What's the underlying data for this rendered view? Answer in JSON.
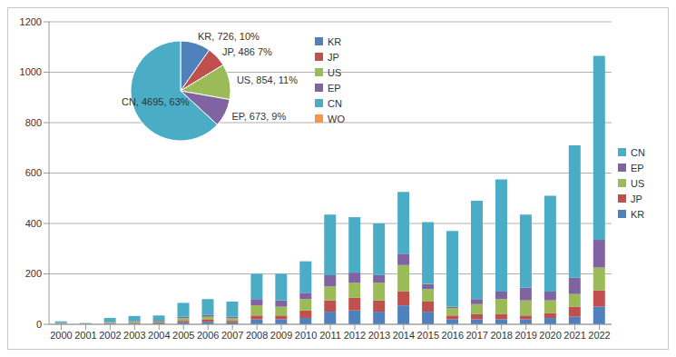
{
  "chart_data": [
    {
      "type": "bar",
      "stacked": true,
      "grid": true,
      "legend": "right",
      "categories": [
        "2000",
        "2001",
        "2002",
        "2003",
        "2004",
        "2005",
        "2006",
        "2007",
        "2008",
        "2009",
        "2010",
        "2011",
        "2012",
        "2013",
        "2014",
        "2015",
        "2016",
        "2017",
        "2018",
        "2019",
        "2020",
        "2021",
        "2022"
      ],
      "ylim": [
        0,
        1200
      ],
      "yticks": [
        0,
        200,
        400,
        600,
        800,
        1000,
        1200
      ],
      "series": [
        {
          "name": "KR",
          "color": "#4f81bd",
          "values": [
            2,
            1,
            3,
            3,
            4,
            8,
            10,
            8,
            20,
            20,
            25,
            50,
            55,
            50,
            75,
            50,
            20,
            20,
            20,
            20,
            25,
            30,
            70
          ]
        },
        {
          "name": "JP",
          "color": "#c0504d",
          "values": [
            1,
            0,
            2,
            3,
            3,
            6,
            8,
            6,
            15,
            15,
            30,
            45,
            50,
            45,
            55,
            40,
            15,
            20,
            20,
            15,
            20,
            40,
            65
          ]
        },
        {
          "name": "US",
          "color": "#9bbb59",
          "values": [
            2,
            1,
            3,
            4,
            4,
            10,
            12,
            10,
            40,
            35,
            45,
            55,
            60,
            70,
            105,
            50,
            30,
            40,
            60,
            60,
            50,
            50,
            90
          ]
        },
        {
          "name": "EP",
          "color": "#8064a2",
          "values": [
            1,
            1,
            2,
            3,
            3,
            6,
            8,
            6,
            25,
            25,
            25,
            45,
            40,
            30,
            45,
            20,
            5,
            20,
            30,
            50,
            35,
            65,
            110
          ]
        },
        {
          "name": "CN",
          "color": "#4bacc6",
          "values": [
            6,
            2,
            15,
            20,
            21,
            55,
            62,
            60,
            100,
            105,
            125,
            240,
            220,
            205,
            245,
            245,
            300,
            390,
            445,
            290,
            380,
            525,
            730
          ]
        }
      ]
    },
    {
      "type": "pie",
      "legend": "right",
      "categories": [
        "KR",
        "JP",
        "US",
        "EP",
        "CN",
        "WO"
      ],
      "values": [
        726,
        486,
        854,
        673,
        4695,
        0
      ],
      "colors": [
        "#4f81bd",
        "#c0504d",
        "#9bbb59",
        "#8064a2",
        "#4bacc6",
        "#f79646"
      ],
      "value_labels": [
        "KR, 726, 10%",
        "JP, 486 7%",
        "US, 854, 11%",
        "EP, 673, 9%",
        "CN, 4695, 63%",
        null
      ]
    }
  ]
}
